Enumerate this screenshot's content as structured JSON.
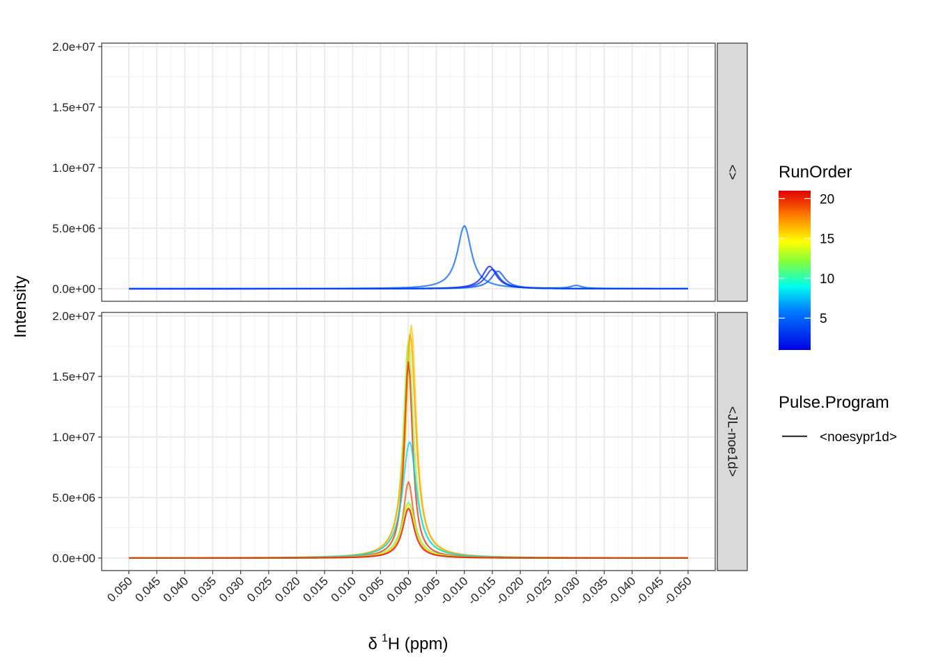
{
  "chart_data": {
    "type": "line",
    "xlabel_greek": "δ",
    "xlabel_sup": "1",
    "xlabel_rest": "H (ppm)",
    "ylabel": "Intensity",
    "x_reversed": true,
    "xlim": [
      0.05,
      -0.05
    ],
    "x_tick_labels": [
      "0.050",
      "0.045",
      "0.040",
      "0.035",
      "0.030",
      "0.025",
      "0.020",
      "0.015",
      "0.010",
      "0.005",
      "0.000",
      "-0.005",
      "-0.010",
      "-0.015",
      "-0.020",
      "-0.025",
      "-0.030",
      "-0.035",
      "-0.040",
      "-0.045",
      "-0.050"
    ],
    "y_tick_labels": [
      "0.0e+00",
      "5.0e+06",
      "1.0e+07",
      "1.5e+07",
      "2.0e+07"
    ],
    "ylim": [
      0,
      20000000
    ],
    "grid": true,
    "legend_position": "right",
    "color_legend": {
      "title": "RunOrder",
      "min": 1,
      "max": 21,
      "labels": [
        "20",
        "15",
        "10",
        "5"
      ]
    },
    "linetype_legend": {
      "title": "Pulse.Program",
      "entries": [
        "<noesypr1d>"
      ]
    },
    "panels": [
      {
        "strip": "<>",
        "series": [
          {
            "run_order": 5,
            "center": -0.01,
            "height": 5200000,
            "width": 0.003,
            "bump_center": -0.03,
            "bump_height": 250000
          },
          {
            "run_order": 2,
            "center": -0.0145,
            "height": 1850000,
            "width": 0.003
          },
          {
            "run_order": 3,
            "center": -0.015,
            "height": 1600000,
            "width": 0.003
          },
          {
            "run_order": 4,
            "center": -0.016,
            "height": 1450000,
            "width": 0.003
          }
        ]
      },
      {
        "strip": "<JL-noe1d>",
        "series": [
          {
            "run_order": 12,
            "center": 0.0,
            "height": 18000000,
            "width": 0.0022
          },
          {
            "run_order": 16,
            "center": -0.0005,
            "height": 19200000,
            "width": 0.0022
          },
          {
            "run_order": 17,
            "center": -0.0003,
            "height": 18500000,
            "width": 0.0024
          },
          {
            "run_order": 20,
            "center": 0.0,
            "height": 16200000,
            "width": 0.0018
          },
          {
            "run_order": 8,
            "center": -0.0002,
            "height": 9600000,
            "width": 0.003
          },
          {
            "run_order": 19,
            "center": 0.0,
            "height": 6300000,
            "width": 0.0022
          },
          {
            "run_order": 11,
            "center": 0.0,
            "height": 4600000,
            "width": 0.003
          },
          {
            "run_order": 15,
            "center": 0.0,
            "height": 4400000,
            "width": 0.0028
          },
          {
            "run_order": 21,
            "center": 0.0,
            "height": 4100000,
            "width": 0.0025
          }
        ]
      }
    ]
  }
}
